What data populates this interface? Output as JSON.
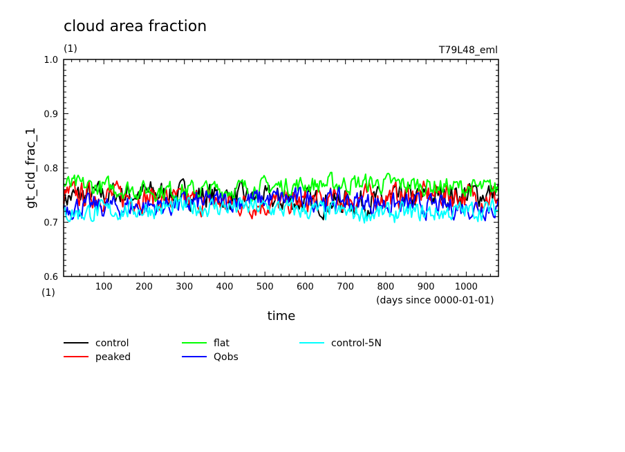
{
  "chart_data": {
    "type": "line",
    "title": "cloud area fraction",
    "subtitle": "(1)",
    "experiment": "T79L48_eml",
    "xlabel": "time",
    "x_units": "(days since 0000-01-01)",
    "ylabel": "gt_cld_frac_1",
    "y_units": "(1)",
    "xlim": [
      0,
      1080
    ],
    "ylim": [
      0.6,
      1.0
    ],
    "x_ticks": [
      100,
      200,
      300,
      400,
      500,
      600,
      700,
      800,
      900,
      1000
    ],
    "x_tick_labels": [
      "100",
      "200",
      "300",
      "400",
      "500",
      "600",
      "700",
      "800",
      "900",
      "1000"
    ],
    "y_ticks": [
      0.6,
      0.7,
      0.8,
      0.9,
      1.0
    ],
    "y_tick_labels": [
      "0.6",
      "0.7",
      "0.8",
      "0.9",
      "1.0"
    ],
    "grid": false,
    "legend_position": "below",
    "series": [
      {
        "name": "control",
        "color": "#000000",
        "mean": 0.745,
        "range": [
          0.7,
          0.79
        ]
      },
      {
        "name": "peaked",
        "color": "#ff0000",
        "mean": 0.742,
        "range": [
          0.69,
          0.78
        ]
      },
      {
        "name": "flat",
        "color": "#00ff00",
        "mean": 0.765,
        "range": [
          0.73,
          0.8
        ]
      },
      {
        "name": "Qobs",
        "color": "#0000ff",
        "mean": 0.735,
        "range": [
          0.69,
          0.77
        ]
      },
      {
        "name": "control-5N",
        "color": "#00ffff",
        "mean": 0.722,
        "range": [
          0.69,
          0.76
        ]
      }
    ]
  }
}
